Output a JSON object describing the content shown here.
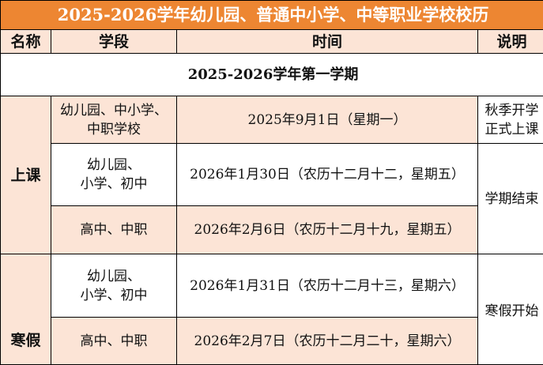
{
  "title": "2025-2026学年幼儿园、普通中小学、中等职业学校校历",
  "headers": [
    "名称",
    "学段",
    "时间",
    "说明"
  ],
  "semester": "2025-2026学年第一学期",
  "groups": {
    "class": {
      "name": "上课",
      "rows": [
        {
          "stage": [
            "幼儿园、中小学、",
            "中职学校"
          ],
          "time": "2025年9月1日（星期一）",
          "note": [
            "秋季开学",
            "正式上课"
          ]
        },
        {
          "stage": [
            "幼儿园、",
            "小学、初中"
          ],
          "time": "2026年1月30日（农历十二月十二，星期五）"
        },
        {
          "stage": [
            "高中、中职"
          ],
          "time": "2026年2月6日（农历十二月十九，星期五）"
        }
      ],
      "note2": "学期结束"
    },
    "winter": {
      "name": "寒假",
      "rows": [
        {
          "stage": [
            "幼儿园、",
            "小学、初中"
          ],
          "time": "2026年1月31日（农历十二月十三，星期六）"
        },
        {
          "stage": [
            "高中、中职"
          ],
          "time": "2026年2月7日（农历十二月二十，星期六）"
        }
      ],
      "note": "寒假开始"
    }
  },
  "colors": {
    "title_bg": "#ED8632",
    "peach": "#FCE4D6"
  }
}
